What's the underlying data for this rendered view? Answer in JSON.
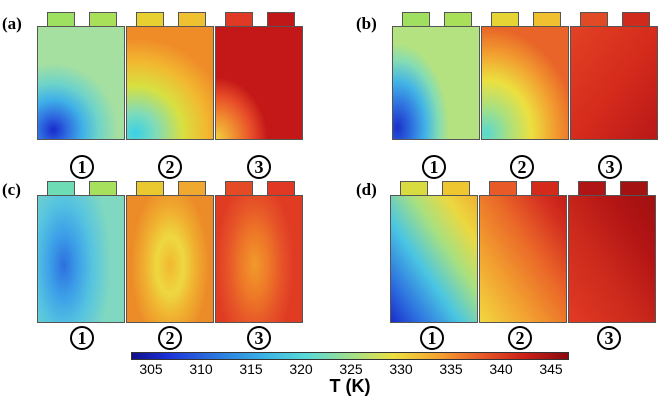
{
  "panels": [
    {
      "id": "a",
      "label": "(a)",
      "circle_labels": [
        "1",
        "2",
        "3"
      ],
      "cells": [
        {
          "tab_colors": [
            "#9ee060",
            "#a8e05a"
          ],
          "gradient": "radial-gradient(ellipse 75% 60% at 18% 92%, #1a2acc 0%, #2f6ee0 22%, #3fb0e8 45%, #6fd4c8 70%, #a6e0a0 100%)"
        },
        {
          "tab_colors": [
            "#e8d030",
            "#efc030"
          ],
          "gradient": "radial-gradient(ellipse 110% 85% at 10% 95%, #3ad0e6 0%, #80dcb8 22%, #d8e040 50%, #f2b830 75%, #ef8c28 100%)"
        },
        {
          "tab_colors": [
            "#e03a26",
            "#c01818"
          ],
          "gradient": "radial-gradient(ellipse 60% 55% at 0% 100%, #f2d040 0%, #f09030 35%, #e84c28 70%, #c41818 100%)"
        }
      ]
    },
    {
      "id": "b",
      "label": "(b)",
      "circle_labels": [
        "1",
        "2",
        "3"
      ],
      "cells": [
        {
          "tab_colors": [
            "#a0e060",
            "#a8e05a"
          ],
          "gradient": "radial-gradient(ellipse 60% 75% at 5% 90%, #1a30c8 0%, #2f70e0 28%, #42b4e6 55%, #84dcb4 80%, #b4e280 100%)"
        },
        {
          "tab_colors": [
            "#e6d434",
            "#f0c030"
          ],
          "gradient": "radial-gradient(ellipse 105% 95% at 5% 95%, #5ad8d0 0%, #a8e080 25%, #ece040 50%, #f2a030 75%, #e86428 100%)"
        },
        {
          "tab_colors": [
            "#e04a24",
            "#d02a1c"
          ],
          "gradient": "linear-gradient(to bottom right, #e24224 0%, #d42a1c 55%, #b81818 100%)"
        }
      ]
    },
    {
      "id": "c",
      "label": "(c)",
      "circle_labels": [
        "1",
        "2",
        "3"
      ],
      "cells": [
        {
          "tab_colors": [
            "#6edcb4",
            "#a6e05c"
          ],
          "gradient": "radial-gradient(ellipse 55% 85% at 30% 55%, #2c70de 0%, #3da0e8 30%, #56c4e0 60%, #80d8c0 100%)"
        },
        {
          "tab_colors": [
            "#eac830",
            "#f0a830"
          ],
          "gradient": "radial-gradient(ellipse 45% 65% at 50% 55%, #f2b830 0%, #eed840 35%, #f0b030 65%, #ec8c28 100%)"
        },
        {
          "tab_colors": [
            "#e44a26",
            "#e03824"
          ],
          "gradient": "radial-gradient(ellipse 45% 70% at 45% 55%, #f29a2c 0%, #ee7a28 35%, #e65428 70%, #e03c24 100%)"
        }
      ]
    },
    {
      "id": "d",
      "label": "(d)",
      "circle_labels": [
        "1",
        "2",
        "3"
      ],
      "cells": [
        {
          "tab_colors": [
            "#d8dc40",
            "#eec630"
          ],
          "gradient": "linear-gradient(to top right, #1a2ccc 0%, #2e74e0 18%, #4ac6e2 40%, #a8e080 62%, #ecd840 82%, #f0b030 100%)"
        },
        {
          "tab_colors": [
            "#e85a28",
            "#d42a1c"
          ],
          "gradient": "linear-gradient(to top right, #f2d840 0%, #f2a030 30%, #ea6628 60%, #d43020 85%, #c41c18 100%)"
        },
        {
          "tab_colors": [
            "#b01414",
            "#a41212"
          ],
          "gradient": "linear-gradient(to top right, #e23a24 0%, #cc2a1c 40%, #b21414 75%, #a01010 100%)"
        }
      ]
    }
  ],
  "colorbar": {
    "title": "T (K)",
    "ticks": [
      "305",
      "310",
      "315",
      "320",
      "325",
      "330",
      "335",
      "340",
      "345"
    ],
    "gradient": "linear-gradient(to right, #10108c 0%, #1c30d8 8%, #2a70e0 18%, #38b2e4 30%, #5ad8d8 40%, #9ee08c 50%, #eee040 60%, #f4a430 70%, #e85a28 80%, #cc2018 90%, #8a0a10 100%)"
  }
}
